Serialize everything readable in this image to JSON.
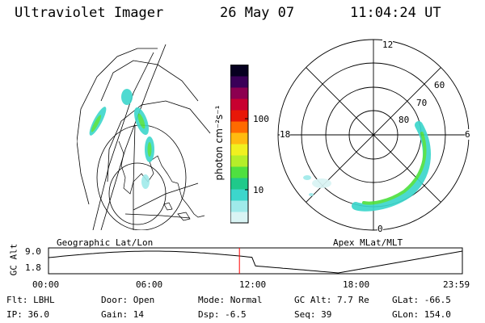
{
  "header": {
    "title": "Ultraviolet Imager",
    "date": "26 May 07",
    "time": "11:04:24 UT"
  },
  "colorbar": {
    "unit_label": "photon cm⁻²s⁻¹",
    "ticks": [
      "100",
      "10"
    ],
    "colors": [
      "#d9f4f4",
      "#9feaea",
      "#3cd6cc",
      "#1fc98a",
      "#4fe040",
      "#b4ee2a",
      "#f0f020",
      "#ffbb10",
      "#ff6a00",
      "#e81808",
      "#c80030",
      "#8c0050",
      "#3a0058",
      "#060020"
    ]
  },
  "geo_map": {
    "label": "Geographic Lat/Lon"
  },
  "polar_plot": {
    "label": "Apex MLat/MLT",
    "mlt_labels": {
      "top": "12",
      "left": "18",
      "right": "6",
      "bottom": "0"
    },
    "lat_labels": [
      "60",
      "70",
      "80"
    ]
  },
  "altitude_panel": {
    "ylabel": "GC Alt",
    "yticks": [
      "9.0",
      "1.8"
    ],
    "xticks": [
      "00:00",
      "06:00",
      "12:00",
      "18:00",
      "23:59"
    ],
    "current_time_marker_color": "#ff0000",
    "current_time_hours": 11.07
  },
  "status": {
    "filter": "Flt: LBHL",
    "ip": "IP: 36.0",
    "door": "Door: Open",
    "gain": "Gain: 14",
    "mode": "Mode: Normal",
    "dsp": "Dsp:    -6.5",
    "gc_alt": "GC Alt: 7.7 Re",
    "seq": "Seq: 39",
    "glat": "GLat:  -66.5",
    "glon": "GLon: 154.0"
  }
}
